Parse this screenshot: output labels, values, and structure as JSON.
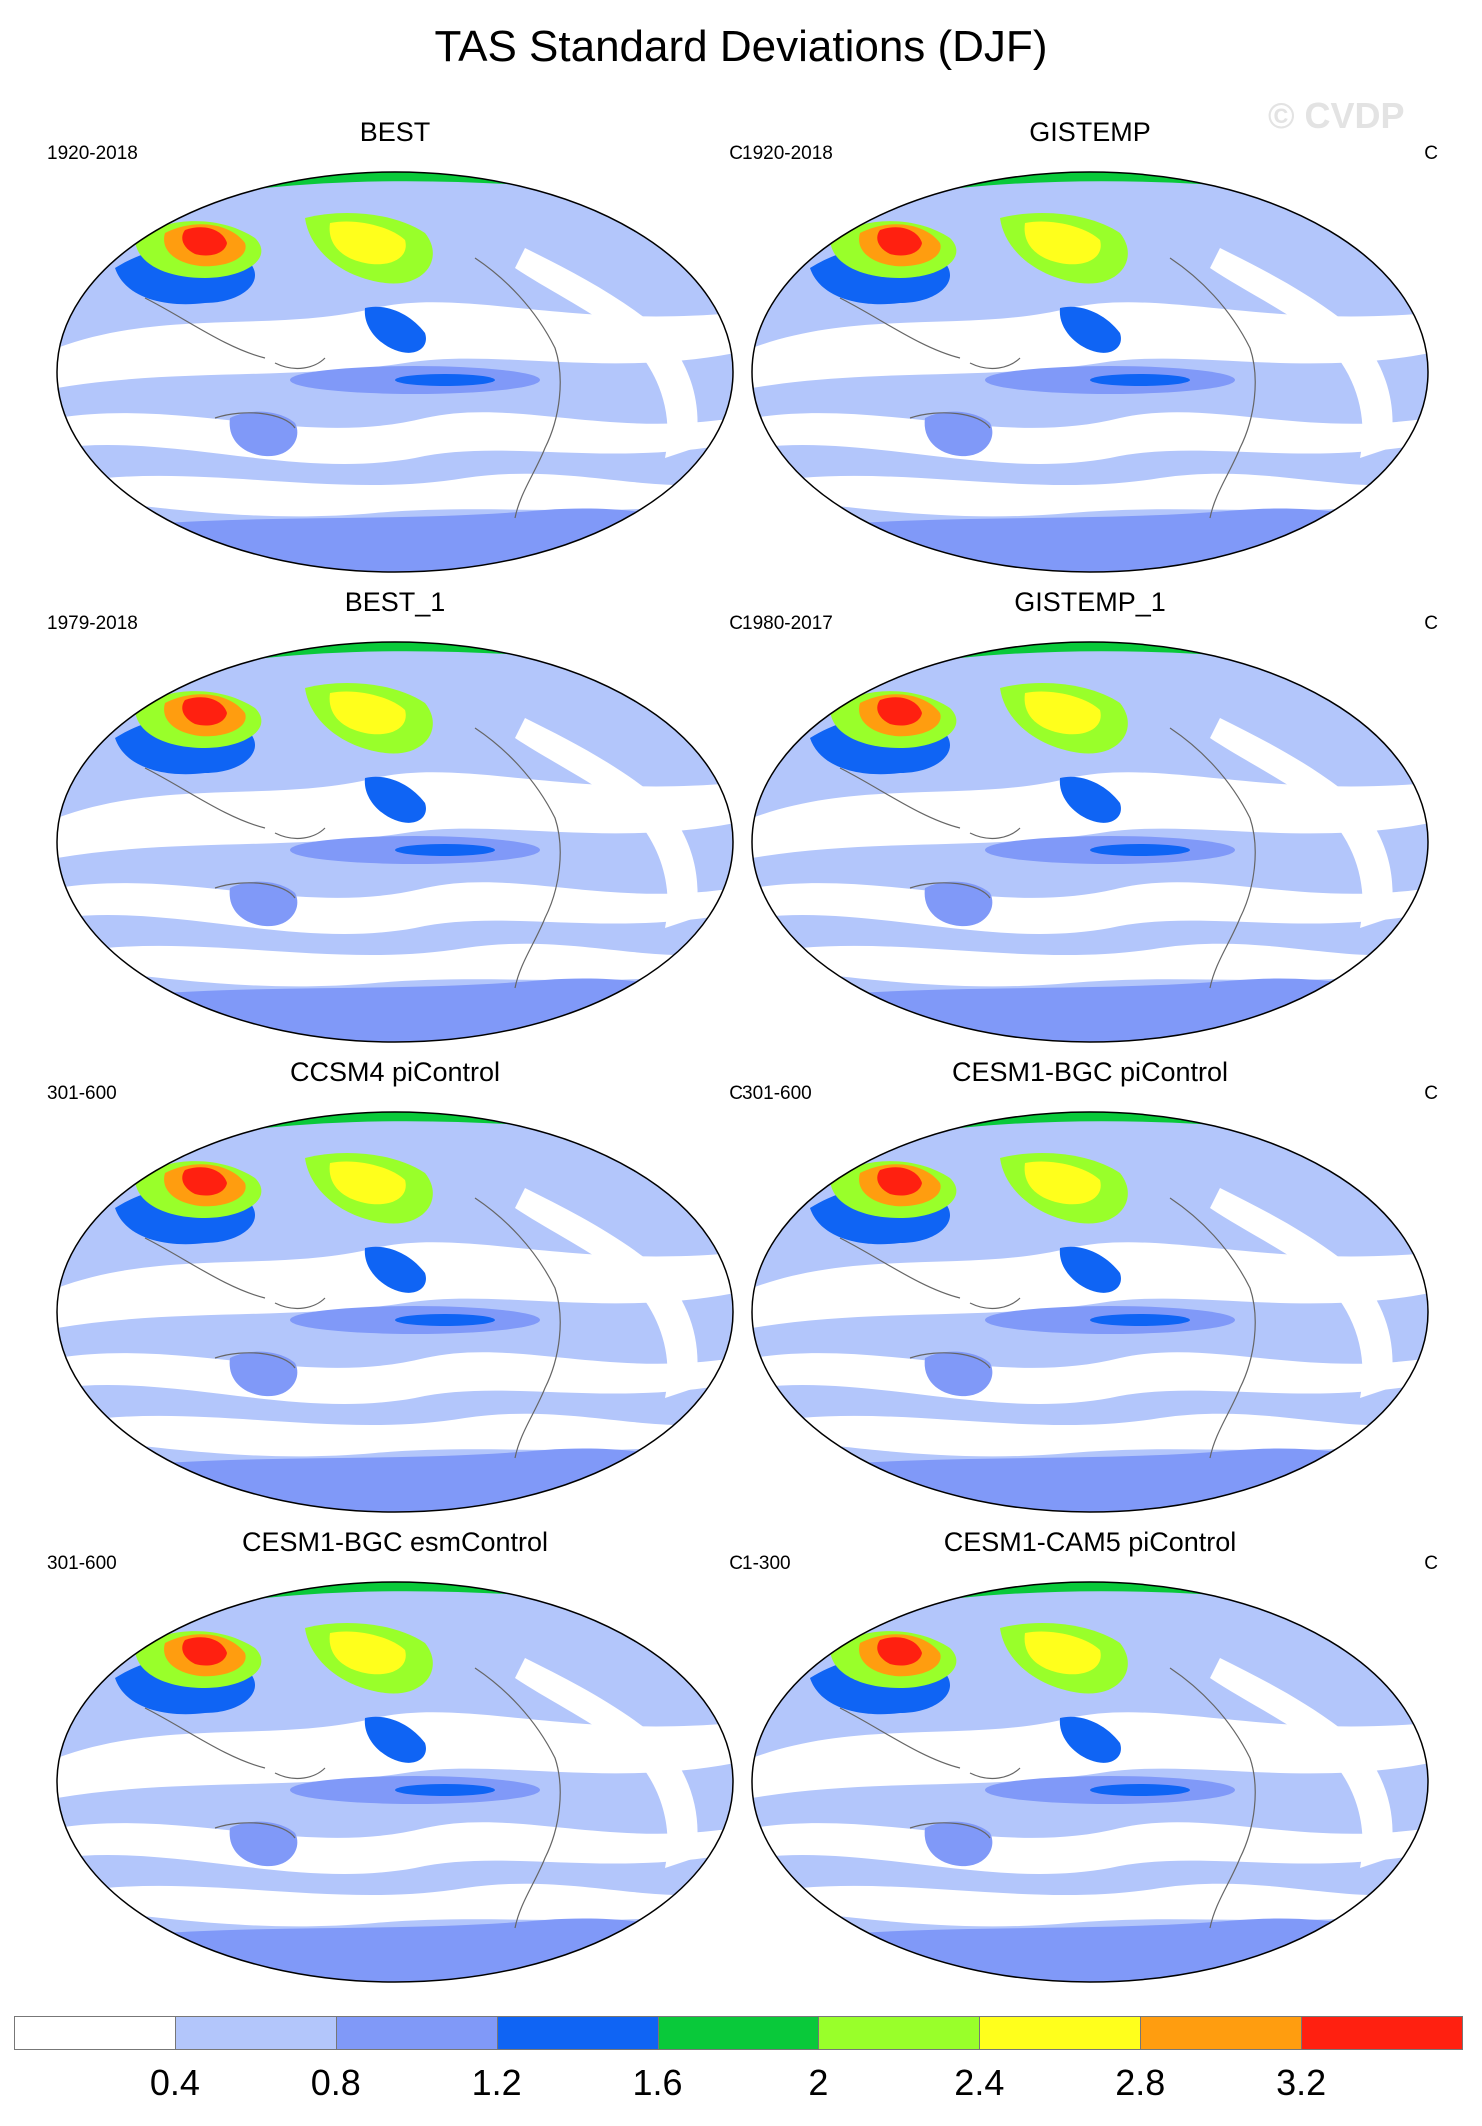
{
  "title": "TAS Standard Deviations (DJF)",
  "watermark": "© CVDP",
  "colorbar": {
    "labels": [
      "0.4",
      "0.8",
      "1.2",
      "1.6",
      "2",
      "2.4",
      "2.8",
      "3.2"
    ],
    "colors": [
      "#ffffff",
      "#b3c6fb",
      "#8099f8",
      "#0f64f4",
      "#09c93a",
      "#99ff2a",
      "#ffff1c",
      "#ff9d0f",
      "#ff2010"
    ]
  },
  "panels": [
    {
      "title": "BEST",
      "period": "1920-2018",
      "units": "C"
    },
    {
      "title": "GISTEMP",
      "period": "1920-2018",
      "units": "C"
    },
    {
      "title": "BEST_1",
      "period": "1979-2018",
      "units": "C"
    },
    {
      "title": "GISTEMP_1",
      "period": "1980-2017",
      "units": "C"
    },
    {
      "title": "CCSM4 piControl",
      "period": "301-600",
      "units": "C"
    },
    {
      "title": "CESM1-BGC piControl",
      "period": "301-600",
      "units": "C"
    },
    {
      "title": "CESM1-BGC esmControl",
      "period": "301-600",
      "units": "C"
    },
    {
      "title": "CESM1-CAM5 piControl",
      "period": "1-300",
      "units": "C"
    }
  ]
}
